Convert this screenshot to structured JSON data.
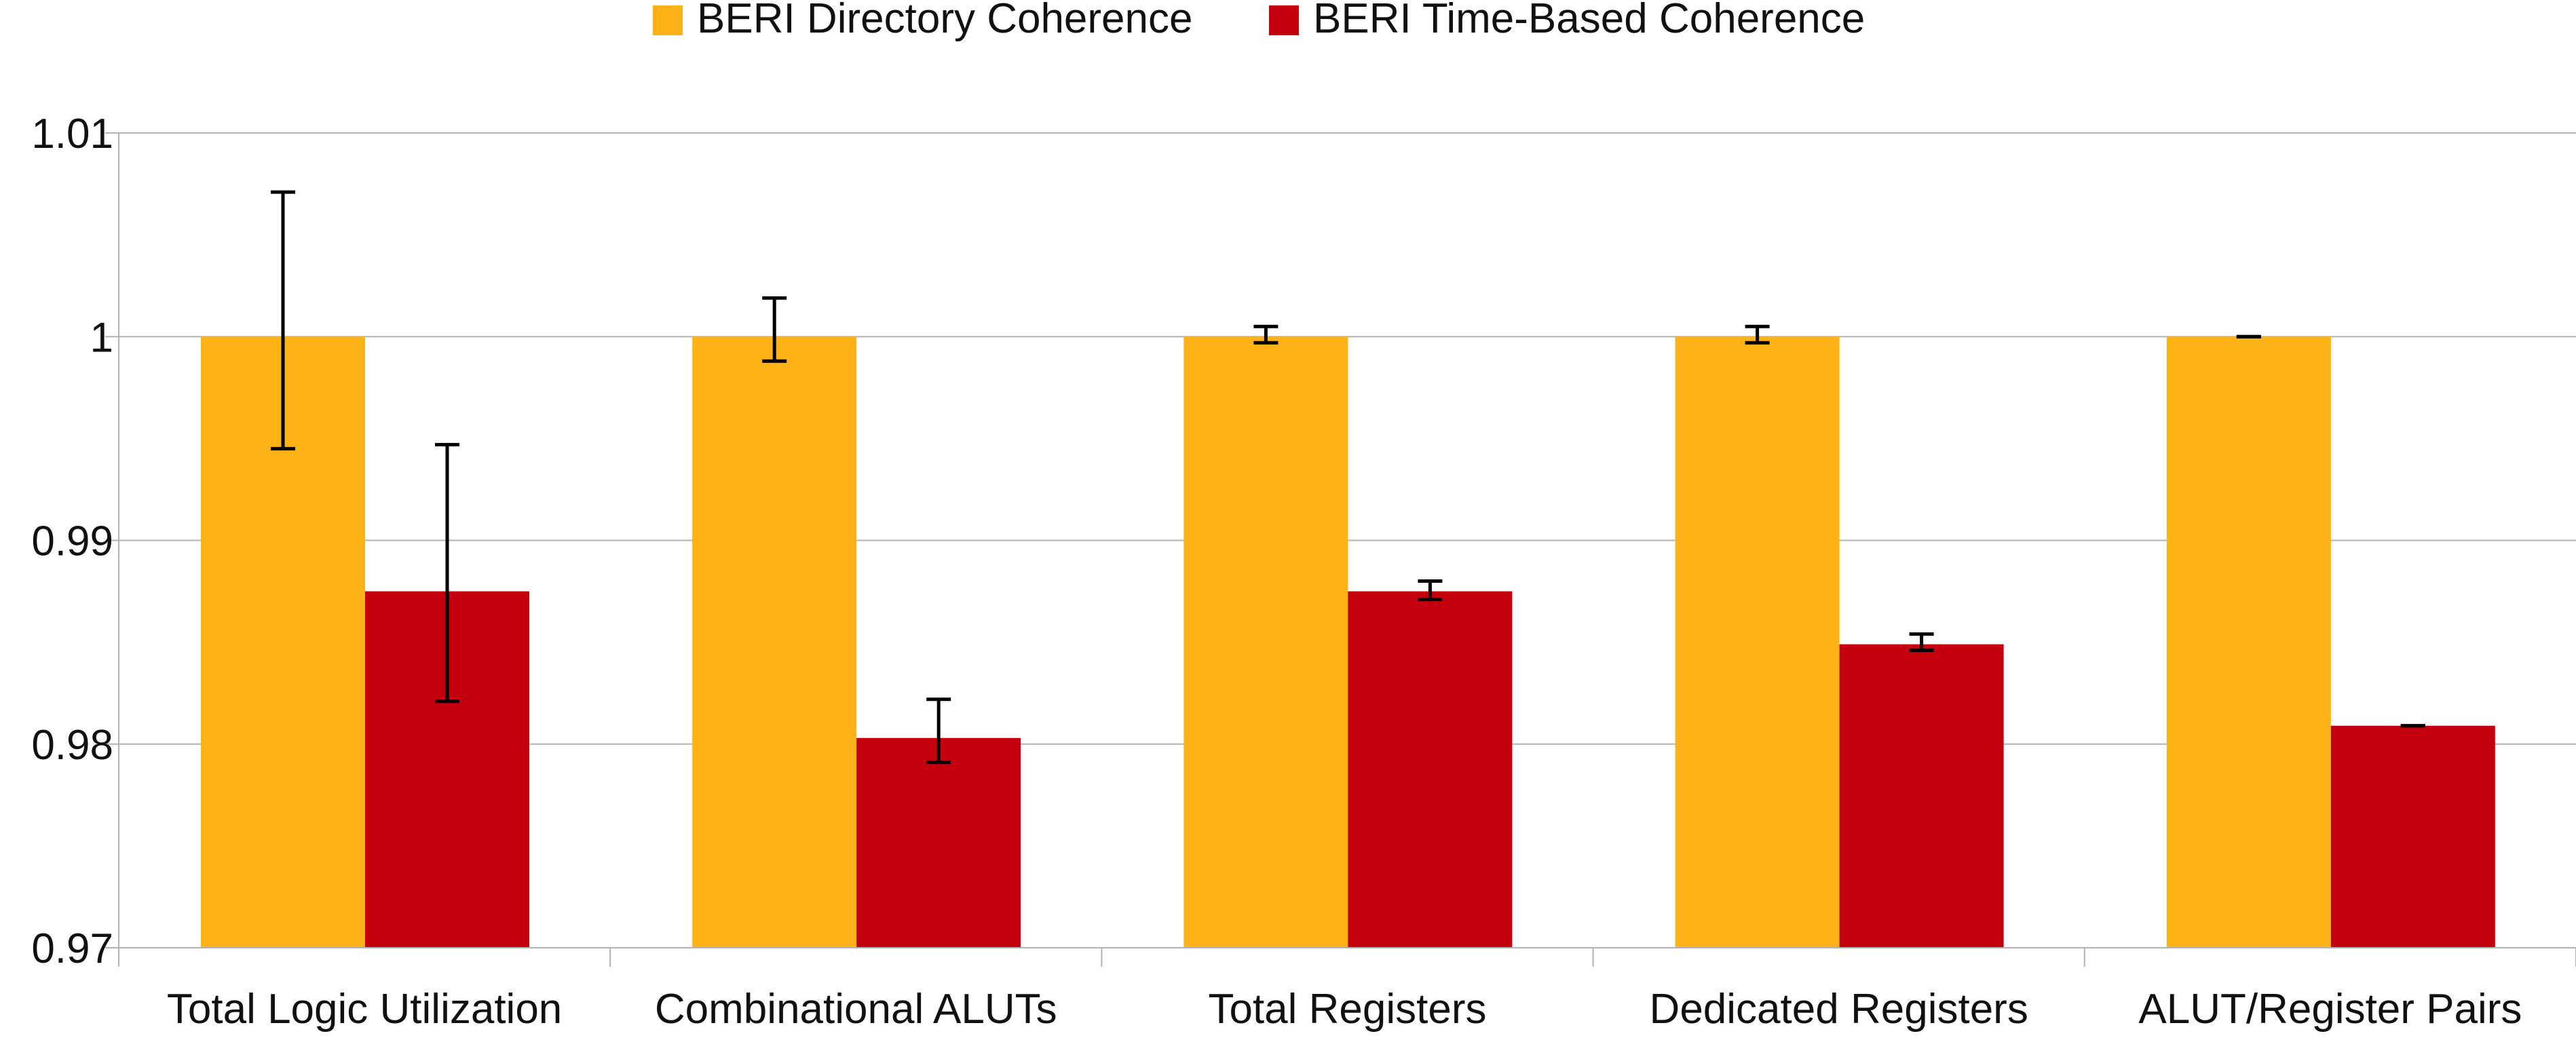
{
  "chart_data": {
    "type": "bar",
    "categories": [
      "Total Logic Utilization",
      "Combinational ALUTs",
      "Total Registers",
      "Dedicated Registers",
      "ALUT/Register Pairs"
    ],
    "series": [
      {
        "name": "BERI Directory Coherence",
        "color": "#FDB218",
        "values": [
          1.0,
          1.0,
          1.0,
          1.0,
          1.0
        ],
        "error_low": [
          0.9945,
          0.9988,
          0.9997,
          0.9997,
          1.0
        ],
        "error_high": [
          1.0071,
          1.0019,
          1.0005,
          1.0005,
          1.0
        ]
      },
      {
        "name": "BERI Time-Based Coherence",
        "color": "#C4000F",
        "values": [
          0.9875,
          0.9803,
          0.9875,
          0.9849,
          0.9809
        ],
        "error_low": [
          0.9821,
          0.9791,
          0.9871,
          0.9846,
          0.9809
        ],
        "error_high": [
          0.9947,
          0.9822,
          0.988,
          0.9854,
          0.9809
        ]
      }
    ],
    "title": "",
    "xlabel": "",
    "ylabel": "",
    "ylim": [
      0.97,
      1.01
    ],
    "yticks": [
      "0.97",
      "0.98",
      "0.99",
      "1",
      "1.01"
    ],
    "grid": true,
    "legend_position": "top-center",
    "error_bars": true,
    "colors": {
      "grid": "#B3B3B3",
      "axis": "#B3B3B3",
      "error_bar": "#000000",
      "text": "#111111"
    }
  }
}
